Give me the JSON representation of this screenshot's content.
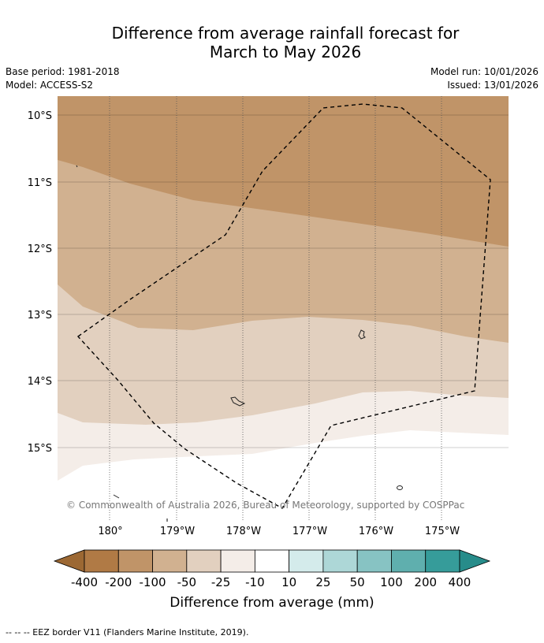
{
  "header": {
    "title_line1": "Difference from average rainfall forecast for",
    "title_line2": "March to May 2026"
  },
  "meta": {
    "base_period": "Base period: 1981-2018",
    "model": "Model: ACCESS-S2",
    "model_run": "Model run: 10/01/2026",
    "issued": "Issued: 13/01/2026"
  },
  "map": {
    "lat_labels": [
      "10°S",
      "11°S",
      "12°S",
      "13°S",
      "14°S",
      "15°S"
    ],
    "lon_labels": [
      "180°",
      "179°W",
      "178°W",
      "177°W",
      "176°W",
      "175°W"
    ],
    "copyright": "© Commonwealth of Australia 2026, Bureau of Meteorology, supported by COSPPac",
    "colors": {
      "lt_-200": "#c09468",
      "-100_-50": "#d1b190",
      "-50_-25": "#e2d0bf",
      "-25_-10": "#f4ede8",
      "-10_10": "#ffffff"
    }
  },
  "colorbar": {
    "tick_labels": [
      "-400",
      "-200",
      "-100",
      "-50",
      "-25",
      "-10",
      "10",
      "25",
      "50",
      "100",
      "200",
      "400"
    ],
    "colors": [
      "#9c6833",
      "#b07a45",
      "#c09468",
      "#d1b190",
      "#e2d0bf",
      "#f4ede8",
      "#ffffff",
      "#d4ebeb",
      "#add7d7",
      "#87c3c3",
      "#5fafae",
      "#369c9a",
      "#278c8a"
    ],
    "label": "Difference from average (mm)"
  },
  "footer": {
    "legend_text": "--  --  -- EEZ border V11 (Flanders Marine Institute, 2019)."
  }
}
